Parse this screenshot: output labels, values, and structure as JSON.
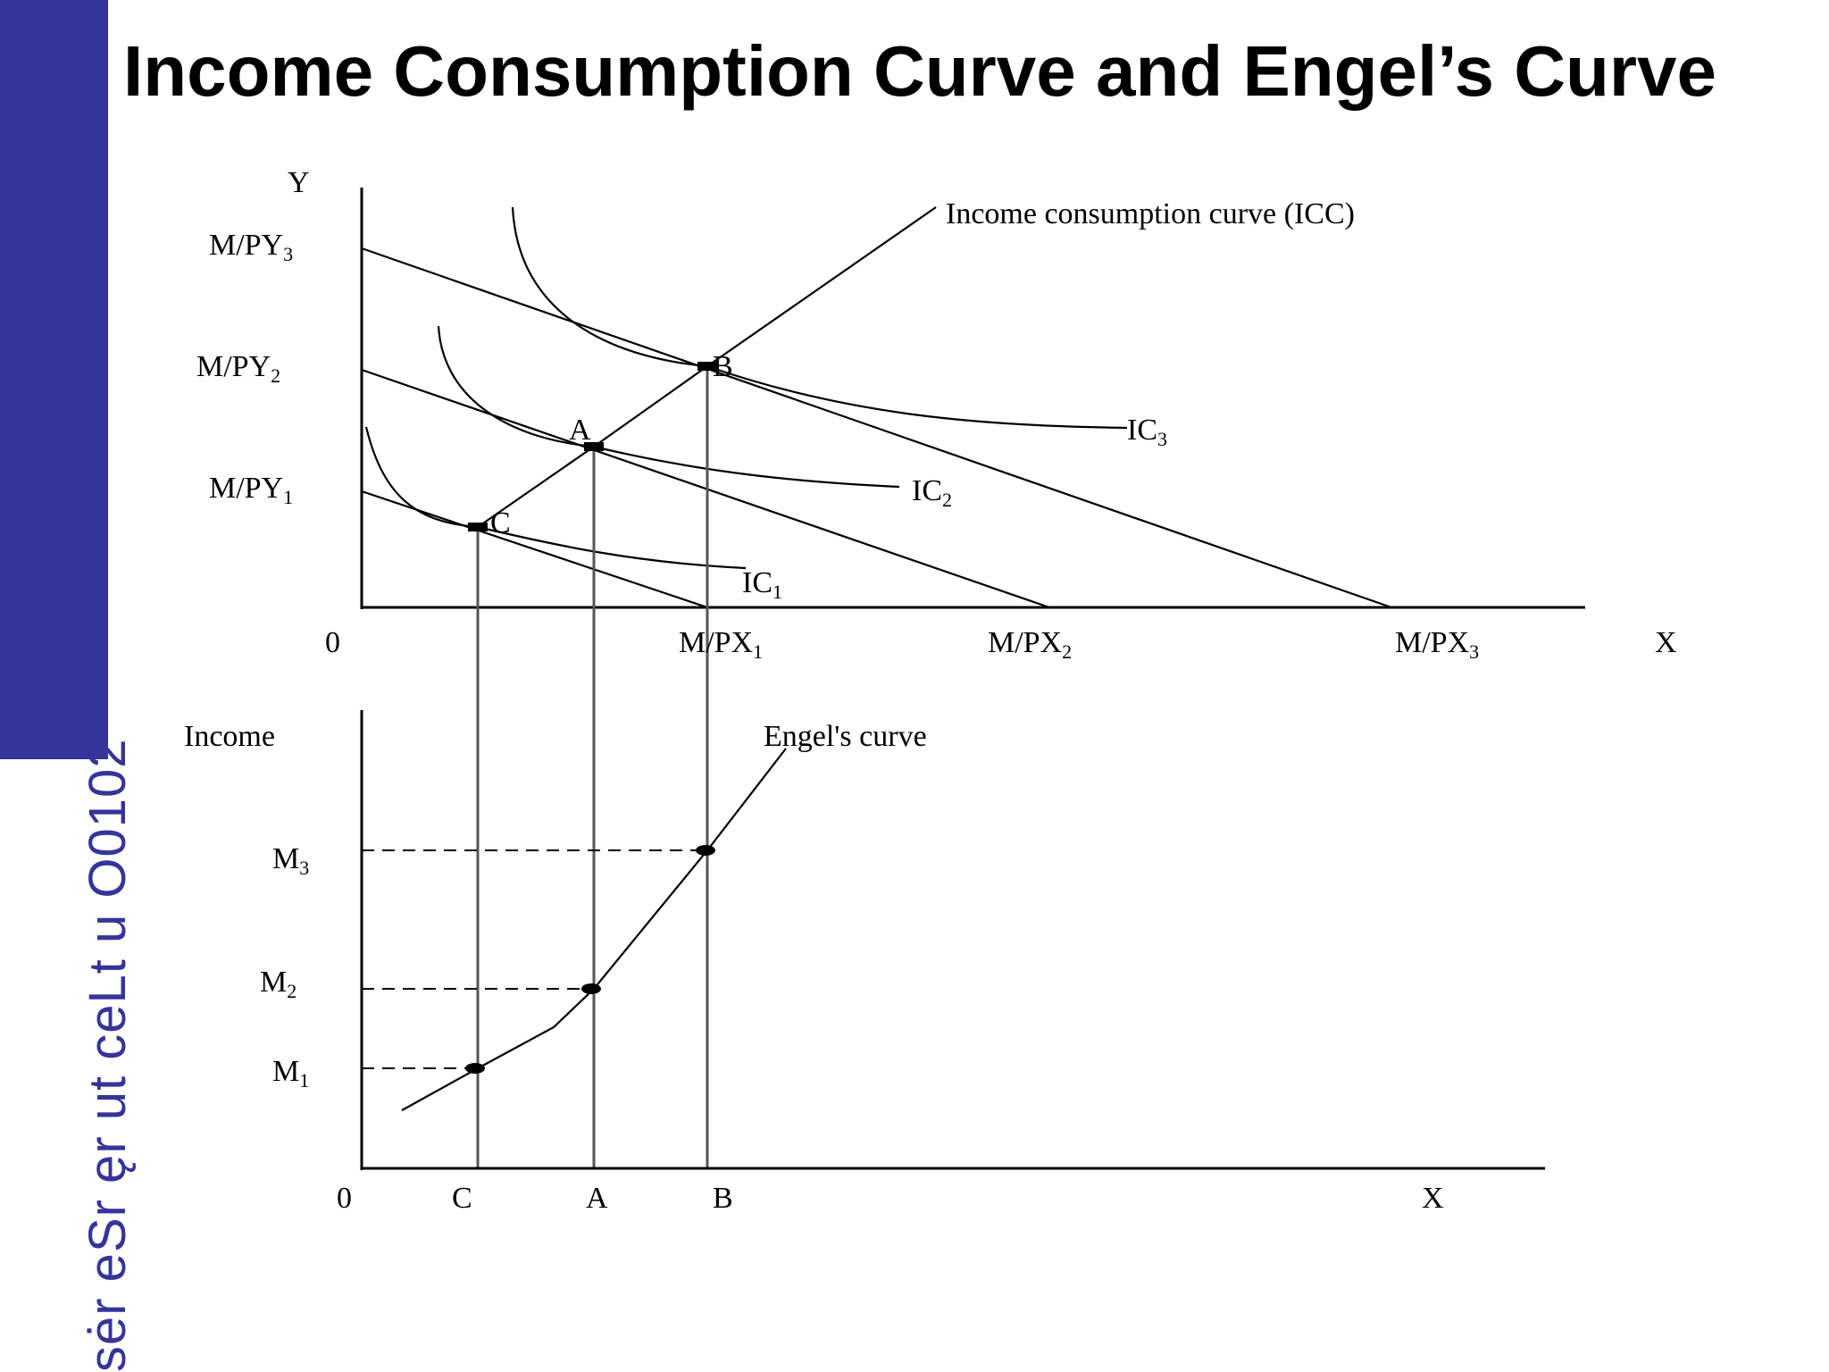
{
  "slide": {
    "title": "Income Consumption Curve and Engel’s Curve",
    "side_text": "sėr eSr ęr ut ceLt u O0102",
    "accent_color": "#35349a"
  },
  "top_graph": {
    "y_axis_label": "Y",
    "x_axis_label": "X",
    "origin_label": "0",
    "y_intercepts": [
      {
        "text": "M/PY",
        "sub": "3"
      },
      {
        "text": "M/PY",
        "sub": "2"
      },
      {
        "text": "M/PY",
        "sub": "1"
      }
    ],
    "x_intercepts": [
      {
        "text": "M/PX",
        "sub": "1"
      },
      {
        "text": "M/PX",
        "sub": "2"
      },
      {
        "text": "M/PX",
        "sub": "3"
      }
    ],
    "indifference_curves": [
      {
        "text": "IC",
        "sub": "1"
      },
      {
        "text": "IC",
        "sub": "2"
      },
      {
        "text": "IC",
        "sub": "3"
      }
    ],
    "points": [
      "C",
      "A",
      "B"
    ],
    "icc_label": "Income consumption curve (ICC)"
  },
  "bottom_graph": {
    "y_axis_label": "Income",
    "x_axis_label": "X",
    "origin_label": "0",
    "income_levels": [
      {
        "text": "M",
        "sub": "3"
      },
      {
        "text": "M",
        "sub": "2"
      },
      {
        "text": "M",
        "sub": "1"
      }
    ],
    "x_ticks": [
      "C",
      "A",
      "B"
    ],
    "engel_label": "Engel's curve"
  }
}
